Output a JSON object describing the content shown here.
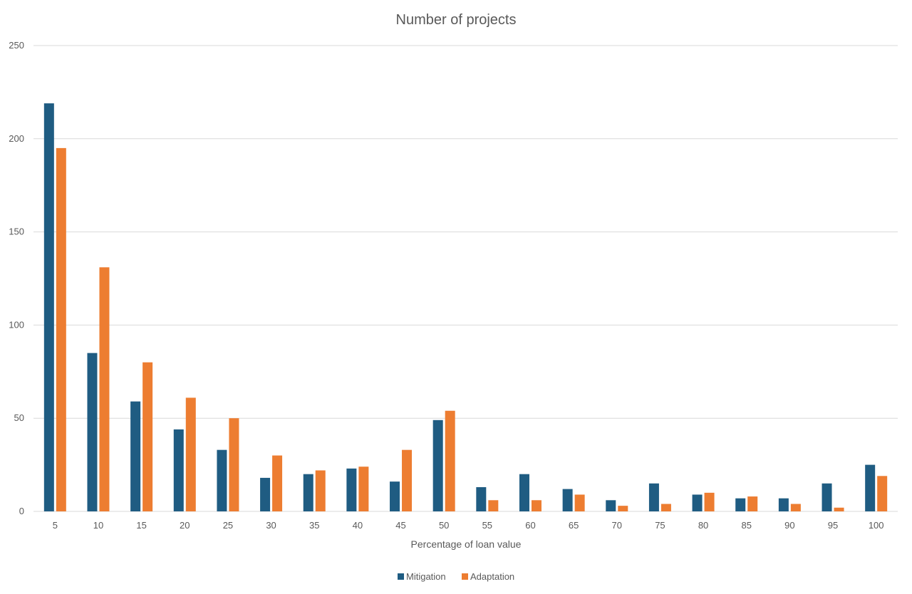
{
  "chart_data": {
    "type": "bar",
    "title": "Number of projects",
    "xlabel": "Percentage of loan value",
    "ylabel": "",
    "ylim": [
      0,
      250
    ],
    "yticks": [
      0,
      50,
      100,
      150,
      200,
      250
    ],
    "grid": true,
    "legend_position": "bottom",
    "categories": [
      "5",
      "10",
      "15",
      "20",
      "25",
      "30",
      "35",
      "40",
      "45",
      "50",
      "55",
      "60",
      "65",
      "70",
      "75",
      "80",
      "85",
      "90",
      "95",
      "100"
    ],
    "series": [
      {
        "name": "Mitigation",
        "color": "#1f5c82",
        "values": [
          219,
          85,
          59,
          44,
          33,
          18,
          20,
          23,
          16,
          49,
          13,
          20,
          12,
          6,
          15,
          9,
          7,
          7,
          15,
          25
        ]
      },
      {
        "name": "Adaptation",
        "color": "#ed7d31",
        "values": [
          195,
          131,
          80,
          61,
          50,
          30,
          22,
          24,
          33,
          54,
          6,
          6,
          9,
          3,
          4,
          10,
          8,
          4,
          2,
          19
        ]
      }
    ]
  }
}
